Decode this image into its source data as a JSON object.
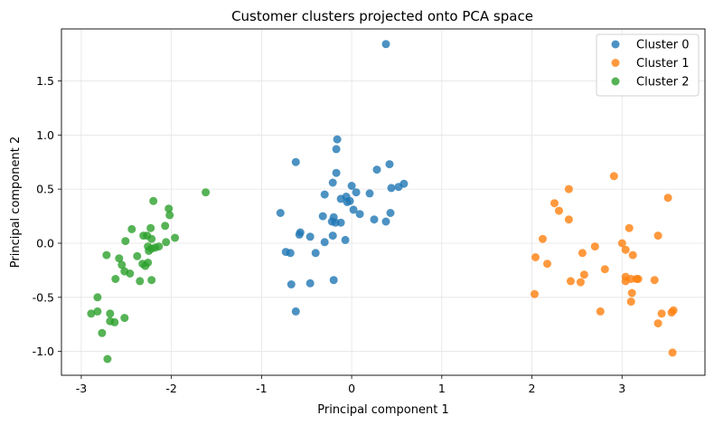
{
  "chart_data": {
    "type": "scatter",
    "title": "Customer clusters projected onto PCA space",
    "xlabel": "Principal component 1",
    "ylabel": "Principal component 2",
    "xlim": [
      -3.22,
      3.92
    ],
    "ylim": [
      -1.22,
      1.98
    ],
    "xticks": [
      -3,
      -2,
      -1,
      0,
      1,
      2,
      3
    ],
    "xtick_labels": [
      "-3",
      "-2",
      "-1",
      "0",
      "1",
      "2",
      "3"
    ],
    "yticks": [
      -1.0,
      -0.5,
      0.0,
      0.5,
      1.0,
      1.5
    ],
    "ytick_labels": [
      "-1.0",
      "-0.5",
      "0.0",
      "0.5",
      "1.0",
      "1.5"
    ],
    "grid": true,
    "legend_position": "top-right",
    "series": [
      {
        "name": "Cluster 0",
        "color": "#1f77b4",
        "points": [
          [
            0.38,
            1.84
          ],
          [
            -0.16,
            0.96
          ],
          [
            -0.17,
            0.87
          ],
          [
            -0.62,
            0.75
          ],
          [
            0.42,
            0.73
          ],
          [
            0.28,
            0.68
          ],
          [
            -0.17,
            0.65
          ],
          [
            0.58,
            0.55
          ],
          [
            -0.21,
            0.56
          ],
          [
            0.0,
            0.53
          ],
          [
            0.52,
            0.52
          ],
          [
            0.44,
            0.51
          ],
          [
            0.05,
            0.47
          ],
          [
            0.2,
            0.46
          ],
          [
            -0.3,
            0.45
          ],
          [
            -0.06,
            0.43
          ],
          [
            -0.12,
            0.41
          ],
          [
            -0.02,
            0.39
          ],
          [
            -0.05,
            0.38
          ],
          [
            0.02,
            0.31
          ],
          [
            0.09,
            0.27
          ],
          [
            0.43,
            0.28
          ],
          [
            -0.79,
            0.28
          ],
          [
            -0.32,
            0.25
          ],
          [
            -0.2,
            0.24
          ],
          [
            -0.22,
            0.2
          ],
          [
            -0.12,
            0.19
          ],
          [
            0.25,
            0.22
          ],
          [
            0.38,
            0.2
          ],
          [
            -0.18,
            0.19
          ],
          [
            -0.57,
            0.1
          ],
          [
            -0.58,
            0.08
          ],
          [
            -0.21,
            0.07
          ],
          [
            -0.46,
            0.06
          ],
          [
            -0.07,
            0.03
          ],
          [
            -0.3,
            0.01
          ],
          [
            -0.73,
            -0.08
          ],
          [
            -0.68,
            -0.09
          ],
          [
            -0.4,
            -0.09
          ],
          [
            -0.67,
            -0.38
          ],
          [
            -0.46,
            -0.37
          ],
          [
            -0.2,
            -0.34
          ],
          [
            -0.62,
            -0.63
          ]
        ]
      },
      {
        "name": "Cluster 1",
        "color": "#ff7f0e",
        "points": [
          [
            2.91,
            0.62
          ],
          [
            2.41,
            0.5
          ],
          [
            3.51,
            0.42
          ],
          [
            2.25,
            0.37
          ],
          [
            2.41,
            0.22
          ],
          [
            2.3,
            0.3
          ],
          [
            3.08,
            0.14
          ],
          [
            3.4,
            0.07
          ],
          [
            2.12,
            0.04
          ],
          [
            3.0,
            0.0
          ],
          [
            2.7,
            -0.03
          ],
          [
            3.04,
            -0.06
          ],
          [
            2.56,
            -0.09
          ],
          [
            3.12,
            -0.11
          ],
          [
            2.04,
            -0.13
          ],
          [
            2.17,
            -0.19
          ],
          [
            2.81,
            -0.24
          ],
          [
            2.58,
            -0.29
          ],
          [
            3.04,
            -0.31
          ],
          [
            3.1,
            -0.33
          ],
          [
            3.16,
            -0.33
          ],
          [
            3.18,
            -0.33
          ],
          [
            3.36,
            -0.34
          ],
          [
            3.04,
            -0.35
          ],
          [
            2.43,
            -0.35
          ],
          [
            2.54,
            -0.36
          ],
          [
            3.11,
            -0.46
          ],
          [
            2.03,
            -0.47
          ],
          [
            3.1,
            -0.54
          ],
          [
            3.57,
            -0.62
          ],
          [
            2.76,
            -0.63
          ],
          [
            3.44,
            -0.65
          ],
          [
            3.55,
            -0.64
          ],
          [
            3.4,
            -0.74
          ],
          [
            3.56,
            -1.01
          ]
        ]
      },
      {
        "name": "Cluster 2",
        "color": "#2ca02c",
        "points": [
          [
            -1.62,
            0.47
          ],
          [
            -2.2,
            0.39
          ],
          [
            -2.03,
            0.32
          ],
          [
            -2.02,
            0.26
          ],
          [
            -2.07,
            0.16
          ],
          [
            -2.23,
            0.14
          ],
          [
            -2.44,
            0.13
          ],
          [
            -2.31,
            0.07
          ],
          [
            -2.27,
            0.07
          ],
          [
            -1.96,
            0.05
          ],
          [
            -2.22,
            0.04
          ],
          [
            -2.51,
            0.02
          ],
          [
            -2.06,
            0.01
          ],
          [
            -2.14,
            -0.03
          ],
          [
            -2.26,
            -0.03
          ],
          [
            -2.18,
            -0.04
          ],
          [
            -2.22,
            -0.05
          ],
          [
            -2.25,
            -0.07
          ],
          [
            -2.72,
            -0.11
          ],
          [
            -2.38,
            -0.12
          ],
          [
            -2.58,
            -0.14
          ],
          [
            -2.55,
            -0.2
          ],
          [
            -2.32,
            -0.19
          ],
          [
            -2.26,
            -0.18
          ],
          [
            -2.29,
            -0.21
          ],
          [
            -2.52,
            -0.26
          ],
          [
            -2.46,
            -0.28
          ],
          [
            -2.62,
            -0.33
          ],
          [
            -2.35,
            -0.35
          ],
          [
            -2.22,
            -0.34
          ],
          [
            -2.82,
            -0.5
          ],
          [
            -2.82,
            -0.63
          ],
          [
            -2.89,
            -0.65
          ],
          [
            -2.68,
            -0.65
          ],
          [
            -2.52,
            -0.69
          ],
          [
            -2.68,
            -0.72
          ],
          [
            -2.63,
            -0.73
          ],
          [
            -2.77,
            -0.83
          ],
          [
            -2.71,
            -1.07
          ]
        ]
      }
    ]
  }
}
